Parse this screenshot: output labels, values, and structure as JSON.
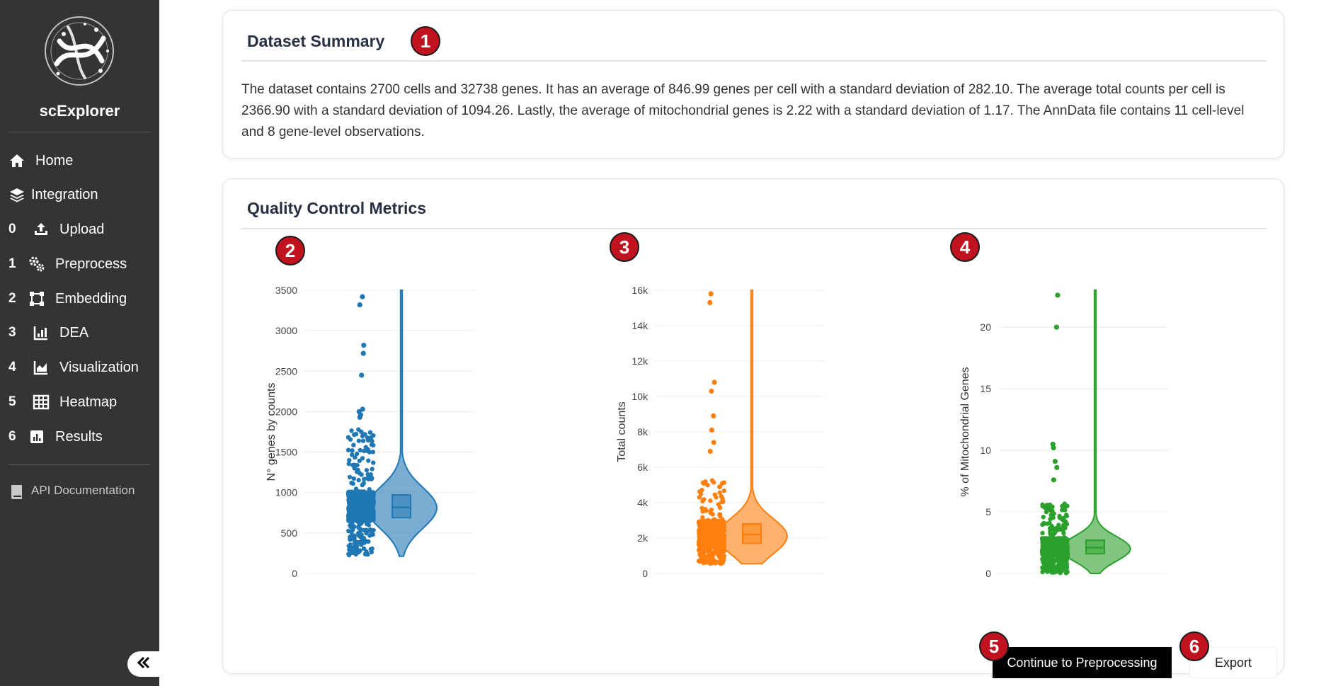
{
  "app": {
    "name": "scExplorer"
  },
  "sidebar": {
    "items": [
      {
        "num": "",
        "label": "Home",
        "icon": "home-icon"
      },
      {
        "num": "",
        "label": "Integration",
        "icon": "layers-icon"
      },
      {
        "num": "0",
        "label": "Upload",
        "icon": "upload-icon"
      },
      {
        "num": "1",
        "label": "Preprocess",
        "icon": "gears-icon"
      },
      {
        "num": "2",
        "label": "Embedding",
        "icon": "vector-square-icon"
      },
      {
        "num": "3",
        "label": "DEA",
        "icon": "bar-chart-icon"
      },
      {
        "num": "4",
        "label": "Visualization",
        "icon": "area-chart-icon"
      },
      {
        "num": "5",
        "label": "Heatmap",
        "icon": "grid-icon"
      },
      {
        "num": "6",
        "label": "Results",
        "icon": "report-icon"
      }
    ],
    "api_doc": {
      "label": "API Documentation",
      "icon": "book-icon"
    },
    "collapse_icon": "double-chevron-left-icon"
  },
  "summary": {
    "title": "Dataset Summary",
    "text": "The dataset contains 2700 cells and 32738 genes. It has an average of 846.99 genes per cell with a standard deviation of 282.10. The average total counts per cell is 2366.90 with a standard deviation of 1094.26. Lastly, the average of mitochondrial genes is 2.22 with a standard deviation of 1.17. The AnnData file contains 11 cell-level and 8 gene-level observations."
  },
  "qc": {
    "title": "Quality Control Metrics"
  },
  "badges": [
    "1",
    "2",
    "3",
    "4",
    "5",
    "6"
  ],
  "colors": {
    "sidebar_bg": "#343434",
    "badge": "#c1121f",
    "series1": "#1f77b4",
    "series2": "#ff7f0e",
    "series3": "#2ca02c"
  },
  "chart_data": [
    {
      "type": "violin",
      "ylabel": "N° genes by counts",
      "ylim": [
        0,
        3500
      ],
      "yticks": [
        "0",
        "500",
        "1000",
        "1500",
        "2000",
        "2500",
        "3000",
        "3500"
      ],
      "color": "#1f77b4",
      "distribution": {
        "min": 212,
        "q1": 690,
        "median": 817,
        "q3": 970,
        "max": 3500,
        "mode": 810,
        "max_width_at": 810
      },
      "outliers": [
        3420,
        3320,
        2820,
        2720,
        2450,
        2030,
        2000,
        1960,
        1930
      ]
    },
    {
      "type": "violin",
      "ylabel": "Total counts",
      "ylim": [
        0,
        16000
      ],
      "yticks": [
        "0",
        "2k",
        "4k",
        "6k",
        "8k",
        "10k",
        "12k",
        "14k",
        "16k"
      ],
      "color": "#ff7f0e",
      "distribution": {
        "min": 548,
        "q1": 1700,
        "median": 2200,
        "q3": 2800,
        "max": 16000,
        "mode": 2100,
        "max_width_at": 2100
      },
      "outliers": [
        15800,
        15300,
        10800,
        10300,
        8900,
        8100,
        7400,
        6900
      ]
    },
    {
      "type": "violin",
      "ylabel": "% of Mitochondrial Genes",
      "ylim": [
        0,
        23
      ],
      "yticks": [
        "0",
        "5",
        "10",
        "15",
        "20"
      ],
      "color": "#2ca02c",
      "distribution": {
        "min": 0,
        "q1": 1.6,
        "median": 2.1,
        "q3": 2.7,
        "max": 23,
        "mode": 2.0,
        "max_width_at": 2.0
      },
      "outliers": [
        22.6,
        20.0,
        10.5,
        10.2,
        9.1,
        8.6,
        7.6
      ]
    }
  ],
  "actions": {
    "continue_label": "Continue to Preprocessing",
    "export_label": "Export"
  }
}
